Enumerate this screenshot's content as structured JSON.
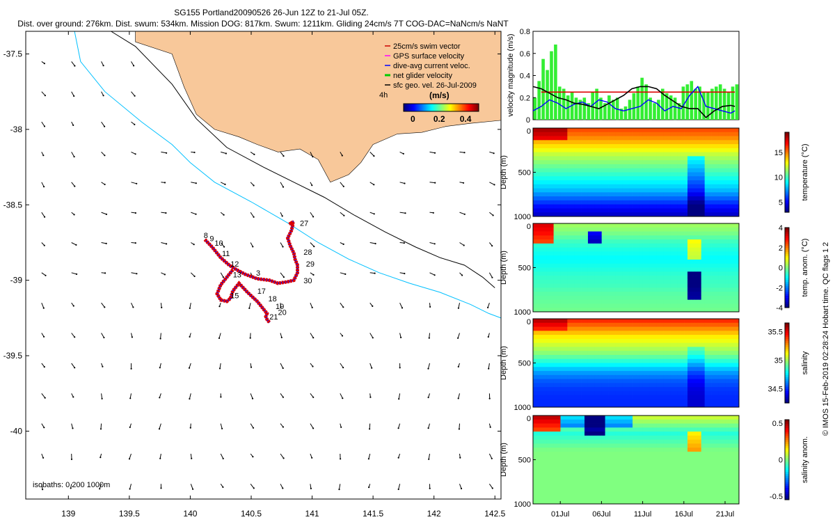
{
  "figure": {
    "title_line1": "SG155 Portland20090526 26-Jun 12Z to 21-Jul 05Z.",
    "title_line2": "Dist. over ground: 276km. Dist. swum: 534km. Mission DOG: 817km. Swum: 1211km. Gliding 24cm/s 7T COG-DAC=NaNcm/s NaNT",
    "footer_vertical": "© IMOS 15-Feb-2019 02:28:24 Hobart time. QC flags 1  2"
  },
  "chart_data": [
    {
      "type": "scatter",
      "id": "map",
      "xlim": [
        138.65,
        142.55
      ],
      "ylim": [
        -40.45,
        -37.35
      ],
      "xticks": [
        139,
        139.5,
        140,
        140.5,
        141,
        141.5,
        142,
        142.5
      ],
      "xtick_labels": [
        "139",
        "139.5",
        "140",
        "140.5",
        "141",
        "141.5",
        "142",
        "142.5"
      ],
      "yticks": [
        -37.5,
        -38,
        -38.5,
        -39,
        -39.5,
        -40
      ],
      "ytick_labels": [
        "-37.5",
        "-38",
        "-38.5",
        "-39",
        "-39.5",
        "-40"
      ],
      "legend": {
        "placement": "top-right",
        "entries": [
          {
            "label": "25cm/s swim vector",
            "color": "#cc0000"
          },
          {
            "label": "GPS surface velocity",
            "color": "#ff00ff"
          },
          {
            "label": "dive-avg current veloc.",
            "color": "#0000ff"
          },
          {
            "label": "net glider velocity",
            "color": "#00cc00"
          },
          {
            "label": "sfc geo. vel. 26-Jul-2009",
            "color": "#000000"
          }
        ],
        "scale_label": "4h"
      },
      "colorbar": {
        "label": "(m/s)",
        "ticks": [
          0,
          0.2,
          0.4
        ],
        "tick_labels": [
          "0",
          "0.2",
          "0.4"
        ],
        "range": [
          -0.07,
          0.5
        ]
      },
      "isobath_label": "isobaths: 0   200   1000m",
      "coastline": {
        "color": "#f8c89a",
        "lon": [
          139.55,
          139.55,
          139.85,
          139.95,
          140.05,
          140.2,
          140.4,
          140.55,
          140.72,
          140.9,
          141.05,
          141.15,
          141.3,
          141.4,
          141.5,
          141.7,
          141.9,
          142.1,
          142.3,
          142.55,
          142.55
        ],
        "lat": [
          -37.35,
          -37.42,
          -37.5,
          -37.72,
          -37.9,
          -38.0,
          -38.05,
          -38.1,
          -38.15,
          -38.13,
          -38.2,
          -38.35,
          -38.3,
          -38.22,
          -38.1,
          -38.03,
          -38.02,
          -37.98,
          -37.96,
          -37.94,
          -37.35
        ]
      },
      "isobath_200": {
        "color": "#000000",
        "lon": [
          139.35,
          139.55,
          139.85,
          140.05,
          140.3,
          140.6,
          140.85,
          141.1,
          141.35,
          141.6,
          141.85,
          142.05,
          142.25,
          142.4,
          142.5
        ],
        "lat": [
          -37.35,
          -37.45,
          -37.7,
          -37.93,
          -38.12,
          -38.25,
          -38.35,
          -38.45,
          -38.57,
          -38.68,
          -38.78,
          -38.85,
          -38.9,
          -38.98,
          -39.05
        ]
      },
      "isobath_1000": {
        "color": "#00c0ff",
        "lon": [
          139.05,
          139.1,
          139.3,
          139.6,
          139.85,
          140.0,
          140.2,
          140.5,
          140.8,
          141.05,
          141.3,
          141.55,
          141.8,
          142.05,
          142.3,
          142.45,
          142.55
        ],
        "lat": [
          -37.35,
          -37.55,
          -37.75,
          -37.95,
          -38.1,
          -38.22,
          -38.35,
          -38.48,
          -38.62,
          -38.75,
          -38.86,
          -38.95,
          -39.02,
          -39.08,
          -39.16,
          -39.22,
          -39.25
        ]
      },
      "track": {
        "color": "#dd0000",
        "lon": [
          140.12,
          140.18,
          140.25,
          140.32,
          140.38,
          140.45,
          140.55,
          140.65,
          140.72,
          140.8,
          140.85,
          140.88,
          140.88,
          140.86,
          140.85,
          140.82,
          140.8,
          140.83,
          140.84,
          140.82,
          140.85,
          140.83,
          140.85
        ],
        "lat": [
          -38.73,
          -38.78,
          -38.85,
          -38.9,
          -38.93,
          -38.96,
          -38.99,
          -39.0,
          -39.02,
          -39.01,
          -39.0,
          -38.95,
          -38.9,
          -38.86,
          -38.82,
          -38.77,
          -38.72,
          -38.67,
          -38.64,
          -38.62,
          -38.63,
          -38.62,
          -38.61
        ]
      },
      "track_south": {
        "lon": [
          140.35,
          140.3,
          140.25,
          140.22,
          140.25,
          140.3,
          140.33,
          140.35,
          140.4,
          140.47,
          140.55,
          140.6,
          140.63,
          140.62,
          140.63,
          140.65
        ],
        "lat": [
          -38.93,
          -38.98,
          -39.03,
          -39.09,
          -39.13,
          -39.14,
          -39.12,
          -39.07,
          -39.02,
          -39.08,
          -39.14,
          -39.19,
          -39.22,
          -39.24,
          -39.26,
          -39.28
        ]
      },
      "day_labels": [
        {
          "text": "8",
          "lon": 140.11,
          "lat": -38.72
        },
        {
          "text": "9",
          "lon": 140.16,
          "lat": -38.74
        },
        {
          "text": "10",
          "lon": 140.2,
          "lat": -38.77
        },
        {
          "text": "11",
          "lon": 140.26,
          "lat": -38.84
        },
        {
          "text": "12",
          "lon": 140.33,
          "lat": -38.91
        },
        {
          "text": "13",
          "lon": 140.35,
          "lat": -38.98
        },
        {
          "text": "3",
          "lon": 140.54,
          "lat": -38.97
        },
        {
          "text": "15",
          "lon": 140.33,
          "lat": -39.12
        },
        {
          "text": "17",
          "lon": 140.55,
          "lat": -39.09
        },
        {
          "text": "18",
          "lon": 140.64,
          "lat": -39.14
        },
        {
          "text": "19",
          "lon": 140.7,
          "lat": -39.19
        },
        {
          "text": "20",
          "lon": 140.72,
          "lat": -39.23
        },
        {
          "text": "21",
          "lon": 140.65,
          "lat": -39.26
        },
        {
          "text": "27",
          "lon": 140.9,
          "lat": -38.64
        },
        {
          "text": "28",
          "lon": 140.93,
          "lat": -38.83
        },
        {
          "text": "29",
          "lon": 140.95,
          "lat": -38.91
        },
        {
          "text": "30",
          "lon": 140.93,
          "lat": -39.02
        }
      ]
    },
    {
      "type": "line",
      "id": "velocity",
      "ylabel": "velocity magnitude (m/s)",
      "ylim": [
        0,
        0.8
      ],
      "yticks": [
        0,
        0.2,
        0.4,
        0.6,
        0.8
      ],
      "ytick_labels": [
        "0",
        "0.2",
        "0.4",
        "0.6",
        "0.8"
      ],
      "xlim": [
        0,
        25
      ],
      "series": [
        {
          "color": "#33ee33",
          "style": "bars",
          "x": [
            0,
            0.5,
            1,
            1.5,
            2,
            2.5,
            3,
            3.5,
            4,
            4.5,
            5,
            5.5,
            6,
            6.5,
            7,
            7.5,
            8,
            8.5,
            9,
            9.5,
            10,
            10.5,
            11,
            11.5,
            12,
            12.5,
            13,
            13.5,
            14,
            14.5,
            15,
            15.5,
            16,
            16.5,
            17,
            17.5,
            18,
            18.5,
            19,
            19.5,
            20,
            20.5,
            21,
            21.5,
            22,
            22.5,
            23,
            23.5,
            24,
            24.5
          ],
          "y": [
            0.2,
            0.35,
            0.55,
            0.45,
            0.62,
            0.68,
            0.3,
            0.28,
            0.22,
            0.25,
            0.2,
            0.18,
            0.2,
            0.15,
            0.25,
            0.28,
            0.2,
            0.15,
            0.22,
            0.18,
            0.2,
            0.1,
            0.12,
            0.18,
            0.24,
            0.3,
            0.38,
            0.32,
            0.2,
            0.15,
            0.18,
            0.28,
            0.24,
            0.22,
            0.2,
            0.15,
            0.3,
            0.32,
            0.35,
            0.28,
            0.3,
            0.25,
            0.25,
            0.28,
            0.3,
            0.32,
            0.28,
            0.25,
            0.3,
            0.32
          ]
        },
        {
          "color": "#dd0000",
          "style": "line",
          "x": [
            1,
            24.5
          ],
          "y": [
            0.25,
            0.25
          ]
        },
        {
          "color": "#0000ff",
          "style": "line",
          "x": [
            0,
            1,
            2,
            3,
            4,
            5,
            6,
            7,
            8,
            9,
            10,
            11,
            12,
            13,
            14,
            15,
            16,
            17,
            18,
            19,
            20,
            21,
            22,
            23,
            24,
            24.5
          ],
          "y": [
            0.08,
            0.12,
            0.18,
            0.15,
            0.1,
            0.14,
            0.16,
            0.12,
            0.18,
            0.16,
            0.1,
            0.08,
            0.1,
            0.12,
            0.18,
            0.15,
            0.08,
            0.12,
            0.1,
            0.22,
            0.3,
            0.12,
            0.1,
            0.08,
            0.06,
            0.08
          ]
        },
        {
          "color": "#000000",
          "style": "line",
          "x": [
            0,
            1,
            2,
            3,
            4,
            5,
            6,
            7,
            8,
            9,
            10,
            11,
            12,
            13,
            14,
            15,
            16,
            17,
            18,
            19,
            20,
            21,
            22,
            23,
            24,
            24.5
          ],
          "y": [
            0.3,
            0.28,
            0.24,
            0.2,
            0.18,
            0.15,
            0.14,
            0.12,
            0.1,
            0.14,
            0.18,
            0.22,
            0.28,
            0.3,
            0.3,
            0.28,
            0.22,
            0.17,
            0.12,
            0.1,
            0.1,
            0.02,
            0.08,
            0.12,
            0.13,
            0.12
          ]
        }
      ]
    },
    {
      "type": "heatmap",
      "id": "temperature",
      "ylabel": "Depth (m)",
      "ylim": [
        1000,
        0
      ],
      "yticks": [
        0,
        500,
        1000
      ],
      "ytick_labels": [
        "0",
        "500",
        "1000"
      ],
      "colorbar": {
        "label": "temperature (°C)",
        "ticks": [
          5,
          10,
          15
        ],
        "tick_labels": [
          "5",
          "10",
          "15"
        ],
        "range": [
          3,
          19
        ]
      },
      "depths": [
        0,
        100,
        200,
        300,
        400,
        500,
        600,
        700,
        800,
        900,
        1000
      ],
      "profile": [
        16,
        15,
        13.5,
        12,
        11,
        10,
        9,
        8,
        6.5,
        5,
        4
      ]
    },
    {
      "type": "heatmap",
      "id": "temperature-anomaly",
      "ylabel": "Depth (m)",
      "ylim": [
        1000,
        0
      ],
      "yticks": [
        0,
        500,
        1000
      ],
      "ytick_labels": [
        "0",
        "500",
        "1000"
      ],
      "colorbar": {
        "label": "temp. anom. (°C)",
        "ticks": [
          -4,
          -2,
          0,
          2,
          4
        ],
        "tick_labels": [
          "-4",
          "-2",
          "0",
          "2",
          "4"
        ],
        "range": [
          -4,
          4
        ]
      },
      "depths": [
        0,
        100,
        200,
        300,
        400,
        500,
        600,
        700,
        800,
        900,
        1000
      ],
      "profile": [
        0.3,
        0,
        -0.5,
        -0.8,
        -1,
        -0.8,
        -0.6,
        -0.5,
        -0.3,
        -0.2,
        -0.1
      ]
    },
    {
      "type": "heatmap",
      "id": "salinity",
      "ylabel": "Depth (m)",
      "ylim": [
        1000,
        0
      ],
      "yticks": [
        0,
        500,
        1000
      ],
      "ytick_labels": [
        "0",
        "500",
        "1000"
      ],
      "colorbar": {
        "label": "salinity",
        "ticks": [
          34.5,
          35,
          35.5
        ],
        "tick_labels": [
          "34.5",
          "35",
          "35.5"
        ],
        "range": [
          34.25,
          35.65
        ]
      },
      "depths": [
        0,
        100,
        200,
        300,
        400,
        500,
        600,
        700,
        800,
        900,
        1000
      ],
      "profile": [
        35.45,
        35.3,
        35.15,
        35.05,
        34.95,
        34.8,
        34.65,
        34.55,
        34.5,
        34.48,
        34.48
      ]
    },
    {
      "type": "heatmap",
      "id": "salinity-anomaly",
      "ylabel": "Depth (m)",
      "ylim": [
        1000,
        0
      ],
      "yticks": [
        0,
        500,
        1000
      ],
      "ytick_labels": [
        "0",
        "500",
        "1000"
      ],
      "xticks": [
        5,
        10,
        15,
        20,
        25
      ],
      "xtick_labels": [
        "01Jul",
        "06Jul",
        "11Jul",
        "16Jul",
        "21Jul"
      ],
      "colorbar": {
        "label": "salinity anom.",
        "ticks": [
          -0.5,
          0,
          0.5
        ],
        "tick_labels": [
          "-0.5",
          "0",
          "0.5"
        ],
        "range": [
          -0.55,
          0.55
        ]
      },
      "depths": [
        0,
        100,
        200,
        300,
        400,
        500,
        600,
        700,
        800,
        900,
        1000
      ],
      "profile": [
        0.1,
        0,
        -0.1,
        -0.05,
        0,
        0,
        0,
        0,
        0,
        0,
        0
      ]
    }
  ]
}
